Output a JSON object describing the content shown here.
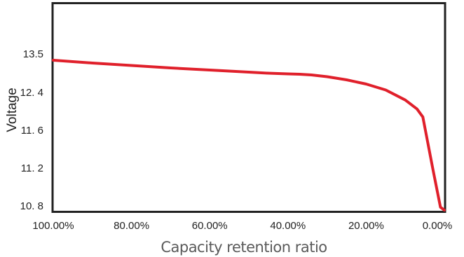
{
  "chart_data": {
    "type": "line",
    "title": "",
    "xlabel": "Capacity retention ratio",
    "ylabel": "Voltage",
    "x_ticks": [
      "100.00%",
      "80.00%",
      "60.00%",
      "40.00%",
      "20.00%",
      "0.00%"
    ],
    "x_tick_values": [
      100,
      80,
      60,
      40,
      20,
      0
    ],
    "y_ticks": [
      "13.5",
      "12. 4",
      "11. 6",
      "11. 2",
      "10. 8"
    ],
    "xlim": [
      100,
      0
    ],
    "grid": false,
    "legend": "none",
    "series": [
      {
        "color": "#e0202b",
        "points": [
          [
            100,
            13.32
          ],
          [
            90,
            13.24
          ],
          [
            80,
            13.17
          ],
          [
            70,
            13.1
          ],
          [
            60,
            13.04
          ],
          [
            50,
            12.98
          ],
          [
            45,
            12.95
          ],
          [
            40,
            12.93
          ],
          [
            37,
            12.92
          ],
          [
            34,
            12.9
          ],
          [
            30,
            12.85
          ],
          [
            25,
            12.76
          ],
          [
            20,
            12.64
          ],
          [
            15,
            12.47
          ],
          [
            10,
            12.24
          ],
          [
            7,
            12.05
          ],
          [
            5.5,
            11.88
          ],
          [
            3,
            11.2
          ],
          [
            1,
            10.55
          ],
          [
            0,
            10.0
          ]
        ]
      }
    ]
  }
}
